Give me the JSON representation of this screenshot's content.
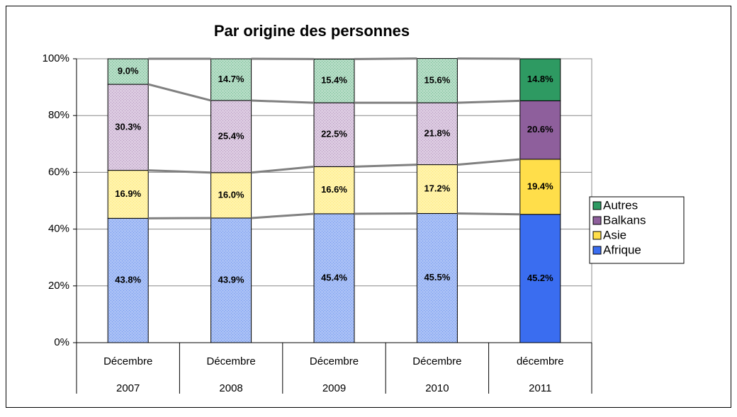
{
  "chart_data": {
    "type": "stacked_bar",
    "title": "Par origine des personnes",
    "categories": [
      [
        "Décembre",
        "2007"
      ],
      [
        "Décembre",
        "2008"
      ],
      [
        "Décembre",
        "2009"
      ],
      [
        "Décembre",
        "2010"
      ],
      [
        "décembre",
        "2011"
      ]
    ],
    "series": [
      {
        "name": "Afrique",
        "color": "#3a6df0",
        "light_color": "#a9c0f5",
        "values": [
          43.8,
          43.9,
          45.4,
          45.5,
          45.2
        ],
        "value_labels": [
          "43.8%",
          "43.9%",
          "45.4%",
          "45.5%",
          "45.2%"
        ]
      },
      {
        "name": "Asie",
        "color": "#ffde4a",
        "light_color": "#fff3aa",
        "values": [
          16.9,
          16.0,
          16.6,
          17.2,
          19.4
        ],
        "value_labels": [
          "16.9%",
          "16.0%",
          "16.6%",
          "17.2%",
          "19.4%"
        ]
      },
      {
        "name": "Balkans",
        "color": "#8e5f9c",
        "light_color": "#dccbe1",
        "values": [
          30.3,
          25.4,
          22.5,
          21.8,
          20.6
        ],
        "value_labels": [
          "30.3%",
          "25.4%",
          "22.5%",
          "21.8%",
          "20.6%"
        ]
      },
      {
        "name": "Autres",
        "color": "#2e9a62",
        "light_color": "#b5dcc5",
        "values": [
          9.0,
          14.7,
          15.4,
          15.6,
          14.8
        ],
        "value_labels": [
          "9.0%",
          "14.7%",
          "15.4%",
          "15.6%",
          "14.8%"
        ]
      }
    ],
    "solid_categories": [
      4
    ],
    "ylim": [
      0,
      100
    ],
    "yticks": [
      {
        "value": 0,
        "label": "0%"
      },
      {
        "value": 20,
        "label": "20%"
      },
      {
        "value": 40,
        "label": "40%"
      },
      {
        "value": 60,
        "label": "60%"
      },
      {
        "value": 80,
        "label": "80%"
      },
      {
        "value": 100,
        "label": "100%"
      }
    ],
    "grid": true,
    "legend": "right",
    "connector_lines": true
  }
}
